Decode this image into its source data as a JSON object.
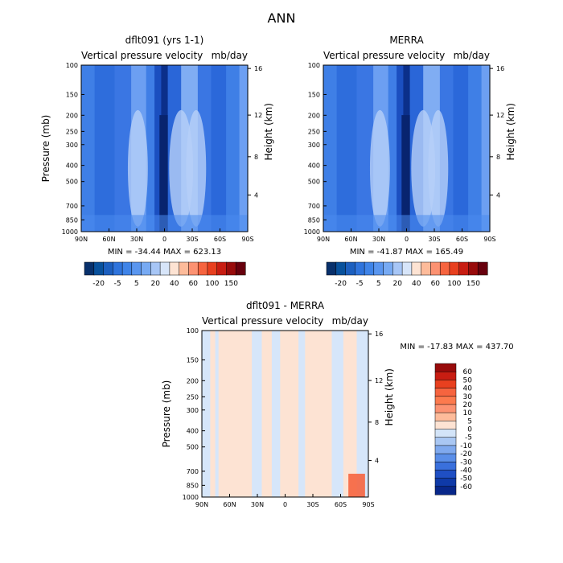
{
  "page_title": "ANN",
  "colors": {
    "neg": [
      "#08306b",
      "#08519c",
      "#2171b5",
      "#3182e6",
      "#4a8df0",
      "#6ea5f5"
    ],
    "pos": [
      "#fde3d3",
      "#fdbb9a",
      "#fc9272",
      "#f6643f",
      "#e8401f",
      "#c81d12",
      "#980b0b",
      "#67000d"
    ]
  },
  "chart_data": [
    {
      "type": "heatmap",
      "title": "dflt091 (yrs 1-1)",
      "subtitle_left": "Vertical pressure velocity",
      "subtitle_right": "mb/day",
      "ylabel": "Pressure (mb)",
      "ylabel_right": "Height (km)",
      "x_ticks": [
        "90N",
        "60N",
        "30N",
        "0",
        "30S",
        "60S",
        "90S"
      ],
      "y_ticks": [
        "100",
        "150",
        "200",
        "250",
        "300",
        "400",
        "500",
        "700",
        "850",
        "1000"
      ],
      "y_ticks_right": [
        "16",
        "12",
        "8",
        "4"
      ],
      "min_max": "MIN = -34.44   MAX = 623.13",
      "colorbar_labels": [
        "-20",
        "-5",
        "5",
        "20",
        "40",
        "60",
        "100",
        "150"
      ],
      "colorbar_colors": [
        "#08306b",
        "#08519c",
        "#1c5fbf",
        "#2f74dc",
        "#3f84e8",
        "#5a96ef",
        "#77aaf3",
        "#a7c6f6",
        "#d7e5f9",
        "#fde3d3",
        "#fdbb9a",
        "#fc9272",
        "#f6643f",
        "#e8401f",
        "#c81d12",
        "#980b0b",
        "#67000d"
      ]
    },
    {
      "type": "heatmap",
      "title": "MERRA",
      "subtitle_left": "Vertical pressure velocity",
      "subtitle_right": "mb/day",
      "ylabel": "",
      "ylabel_right": "Height (km)",
      "x_ticks": [
        "90N",
        "60N",
        "30N",
        "0",
        "30S",
        "60S",
        "90S"
      ],
      "y_ticks": [
        "100",
        "150",
        "200",
        "250",
        "300",
        "400",
        "500",
        "700",
        "850",
        "1000"
      ],
      "y_ticks_right": [
        "16",
        "12",
        "8",
        "4"
      ],
      "min_max": "MIN = -41.87   MAX = 165.49",
      "colorbar_labels": [
        "-20",
        "-5",
        "5",
        "20",
        "40",
        "60",
        "100",
        "150"
      ],
      "colorbar_colors": [
        "#08306b",
        "#08519c",
        "#1c5fbf",
        "#2f74dc",
        "#3f84e8",
        "#5a96ef",
        "#77aaf3",
        "#a7c6f6",
        "#d7e5f9",
        "#fde3d3",
        "#fdbb9a",
        "#fc9272",
        "#f6643f",
        "#e8401f",
        "#c81d12",
        "#980b0b",
        "#67000d"
      ]
    },
    {
      "type": "heatmap",
      "title": "dflt091 - MERRA",
      "subtitle_left": "Vertical pressure velocity",
      "subtitle_right": "mb/day",
      "ylabel": "Pressure (mb)",
      "ylabel_right": "Height (km)",
      "x_ticks": [
        "90N",
        "60N",
        "30N",
        "0",
        "30S",
        "60S",
        "90S"
      ],
      "y_ticks": [
        "100",
        "150",
        "200",
        "250",
        "300",
        "400",
        "500",
        "700",
        "850",
        "1000"
      ],
      "y_ticks_right": [
        "16",
        "12",
        "8",
        "4"
      ],
      "min_max": "MIN = -17.83   MAX = 437.70",
      "colorbar_labels": [
        "60",
        "50",
        "40",
        "30",
        "20",
        "10",
        "5",
        "0",
        "-5",
        "-10",
        "-20",
        "-30",
        "-40",
        "-50",
        "-60"
      ],
      "colorbar_colors": [
        "#980b0b",
        "#c81d12",
        "#e8401f",
        "#f6643f",
        "#fc7a4e",
        "#fc9272",
        "#fdbb9a",
        "#fde3d3",
        "#d3e4f8",
        "#a9c7f3",
        "#7fa9ee",
        "#5a8ee8",
        "#3a70dc",
        "#1f4fc4",
        "#0f3aa8",
        "#08278a"
      ]
    }
  ]
}
